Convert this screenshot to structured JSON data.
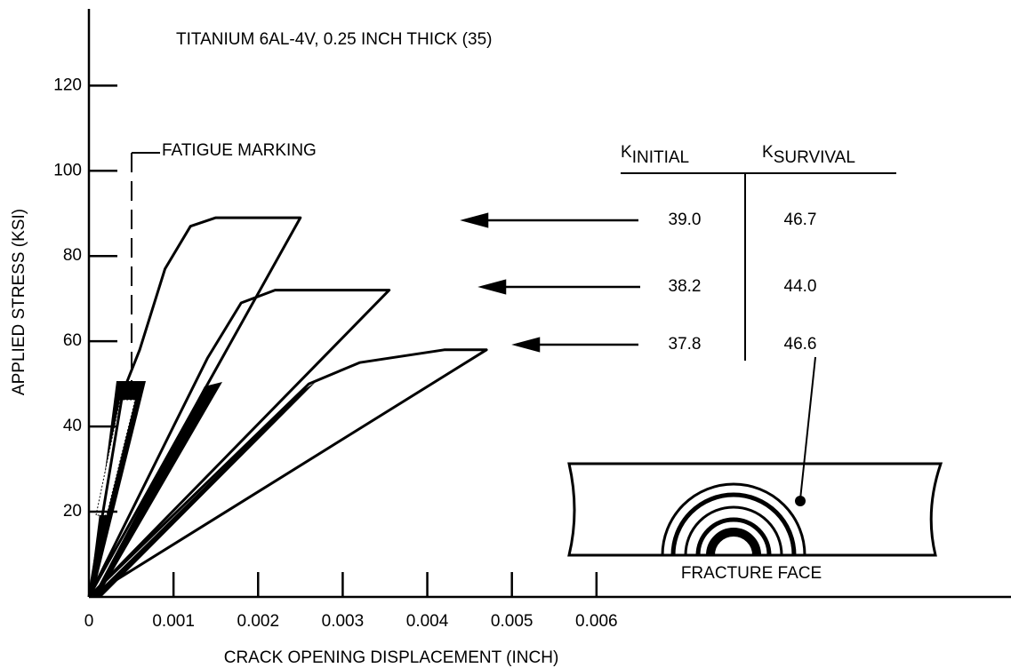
{
  "chart_data": {
    "type": "line",
    "title": "TITANIUM 6AL-4V, 0.25 INCH THICK  (35)",
    "x_label": "CRACK OPENING DISPLACEMENT (INCH)",
    "y_label": "APPLIED STRESS (KSI)",
    "xlim": [
      0,
      0.0109
    ],
    "ylim": [
      0,
      138
    ],
    "xticks": [
      0,
      0.001,
      0.002,
      0.003,
      0.004,
      0.005,
      0.006
    ],
    "yticks": [
      20,
      40,
      60,
      80,
      100,
      120
    ],
    "color": "#000000",
    "series": [
      {
        "x": [
          0,
          0.0025,
          0.0015,
          0.0012,
          0.0009,
          0.0006,
          0.0004,
          0
        ],
        "values": [
          0,
          89,
          89,
          87,
          77,
          58,
          48,
          0
        ]
      },
      {
        "x": [
          0,
          0.00355,
          0.0022,
          0.0018,
          0.0014,
          0.001,
          0
        ],
        "values": [
          0,
          72,
          72,
          69,
          56,
          40,
          0
        ]
      },
      {
        "x": [
          0,
          0.0047,
          0.0042,
          0.0032,
          0.0026,
          0
        ],
        "values": [
          0,
          58,
          58,
          55,
          50,
          0
        ]
      }
    ],
    "annotations": {
      "fatigue_marking": "FATIGUE MARKING",
      "fracture_face": "FRACTURE FACE"
    },
    "table": {
      "headers": [
        {
          "symbol": "K",
          "subscript": "INITIAL"
        },
        {
          "symbol": "K",
          "subscript": "SURVIVAL"
        }
      ],
      "rows": [
        [
          "39.0",
          "46.7"
        ],
        [
          "38.2",
          "44.0"
        ],
        [
          "37.8",
          "46.6"
        ]
      ]
    }
  }
}
